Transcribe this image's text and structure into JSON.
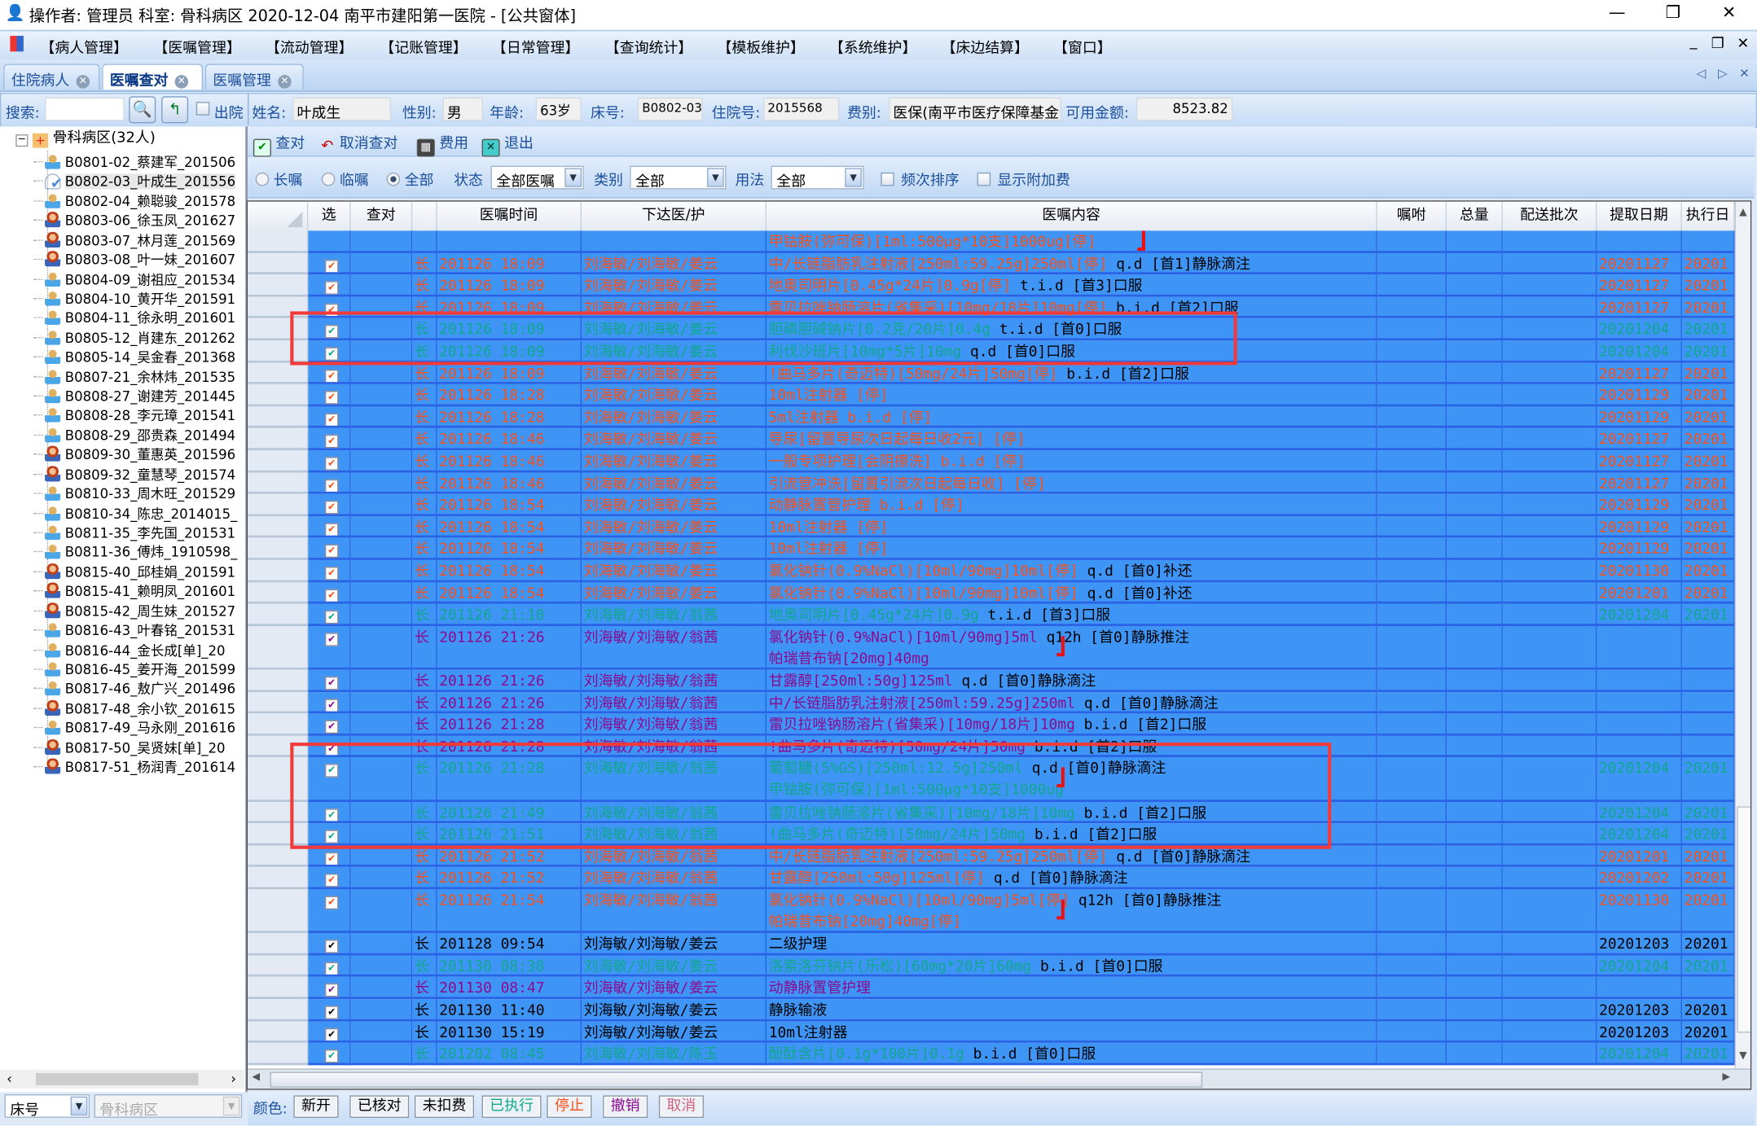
{
  "window": {
    "title": "操作者: 管理员  科室: 骨科病区  2020-12-04  南平市建阳第一医院 - [公共窗体]",
    "controls": [
      "—",
      "❐",
      "✕"
    ]
  },
  "menu": {
    "items": [
      "【病人管理】",
      "【医嘱管理】",
      "【流动管理】",
      "【记账管理】",
      "【日常管理】",
      "【查询统计】",
      "【模板维护】",
      "【系统维护】",
      "【床边结算】",
      "【窗口】"
    ],
    "mdi_controls": [
      "_",
      "❐",
      "✕"
    ]
  },
  "tabs": [
    {
      "label": "住院病人",
      "active": false
    },
    {
      "label": "医嘱查对",
      "active": true
    },
    {
      "label": "医嘱管理",
      "active": false
    }
  ],
  "tab_nav": [
    "◁",
    "▷",
    "✕"
  ],
  "search": {
    "label": "搜索:",
    "value": "",
    "discharged_label": "出院"
  },
  "patient": {
    "name_label": "姓名:",
    "name": "叶成生",
    "sex_label": "性别:",
    "sex": "男",
    "age_label": "年龄:",
    "age": "63岁",
    "bed_label": "床号:",
    "bed": "B0802-03",
    "admission_label": "住院号:",
    "admission": "2015568",
    "fee_type_label": "费别:",
    "fee_type": "医保(南平市医疗保障基金",
    "balance_label": "可用金额:",
    "balance": "8523.82"
  },
  "tree": {
    "root": "骨科病区(32人)",
    "items": [
      {
        "label": "B0801-02_蔡建军_201506",
        "icon": "male"
      },
      {
        "label": "B0802-03_叶成生_201556",
        "icon": "checked",
        "selected": true
      },
      {
        "label": "B0802-04_赖聪骏_201578",
        "icon": "male"
      },
      {
        "label": "B0803-06_徐玉凤_201627",
        "icon": "female"
      },
      {
        "label": "B0803-07_林月莲_201569",
        "icon": "female"
      },
      {
        "label": "B0803-08_叶一妹_201607",
        "icon": "female"
      },
      {
        "label": "B0804-09_谢祖应_201534",
        "icon": "male"
      },
      {
        "label": "B0804-10_黄开华_201591",
        "icon": "male"
      },
      {
        "label": "B0804-11_徐永明_201601",
        "icon": "male"
      },
      {
        "label": "B0805-12_肖建东_201262",
        "icon": "male"
      },
      {
        "label": "B0805-14_吴金春_201368",
        "icon": "male"
      },
      {
        "label": "B0807-21_余林炜_201535",
        "icon": "male"
      },
      {
        "label": "B0808-27_谢建芳_201445",
        "icon": "male"
      },
      {
        "label": "B0808-28_李元璋_201541",
        "icon": "male"
      },
      {
        "label": "B0808-29_邵贵森_201494",
        "icon": "male"
      },
      {
        "label": "B0809-30_董惠英_201596",
        "icon": "female"
      },
      {
        "label": "B0809-32_童慧琴_201574",
        "icon": "female"
      },
      {
        "label": "B0810-33_周木旺_201529",
        "icon": "male"
      },
      {
        "label": "B0810-34_陈忠_2014015_",
        "icon": "male"
      },
      {
        "label": "B0811-35_李先国_201531",
        "icon": "male"
      },
      {
        "label": "B0811-36_傅炜_1910598_",
        "icon": "male"
      },
      {
        "label": "B0815-40_邱桂娟_201591",
        "icon": "female"
      },
      {
        "label": "B0815-41_赖明凤_201601",
        "icon": "female"
      },
      {
        "label": "B0815-42_周生妹_201527",
        "icon": "female"
      },
      {
        "label": "B0816-43_叶春铭_201531",
        "icon": "male"
      },
      {
        "label": "B0816-44_金长成[单]_20",
        "icon": "male"
      },
      {
        "label": "B0816-45_姜开海_201599",
        "icon": "male"
      },
      {
        "label": "B0817-46_敖广兴_201496",
        "icon": "male"
      },
      {
        "label": "B0817-48_余小钦_201615",
        "icon": "female"
      },
      {
        "label": "B0817-49_马永刚_201616",
        "icon": "male"
      },
      {
        "label": "B0817-50_吴贤妹[单]_20",
        "icon": "female"
      },
      {
        "label": "B0817-51_杨润青_201614",
        "icon": "female"
      }
    ],
    "sort_select": "床号",
    "ward_select": "骨科病区"
  },
  "toolbar": {
    "check": "查对",
    "cancel_check": "取消查对",
    "fee": "费用",
    "exit": "退出"
  },
  "filter": {
    "radios": [
      {
        "label": "长嘱",
        "checked": false
      },
      {
        "label": "临嘱",
        "checked": false
      },
      {
        "label": "全部",
        "checked": true
      }
    ],
    "status_label": "状态",
    "status": "全部医嘱",
    "category_label": "类别",
    "category": "全部",
    "usage_label": "用法",
    "usage": "全部",
    "freq_sort": "频次排序",
    "show_extra_fee": "显示附加费"
  },
  "colors": {
    "orange": "#f5501a",
    "green": "#0fa88c",
    "purple": "#8a0a90",
    "black": "#000000",
    "row_bg": "#3f95f6",
    "annotation": "#f23a3a"
  },
  "table": {
    "columns": [
      "选",
      "查对",
      "",
      "医嘱时间",
      "下达医/护",
      "医嘱内容",
      "嘱咐",
      "总量",
      "配送批次",
      "提取日期",
      "执行日"
    ],
    "rows": [
      {
        "color": "orange",
        "checked": false,
        "type": "",
        "time": "",
        "doctor": "",
        "content": [
          "甲钴胺(弥可保)[1ml:500μg*10支]1000ug[停]"
        ],
        "freq": "",
        "fetch": "",
        "exec": "",
        "mark": true
      },
      {
        "color": "orange",
        "checked": true,
        "type": "长",
        "time": "201126 18:09",
        "doctor": "刘海敏/刘海敏/姜云",
        "content": [
          "中/长链脂肪乳注射液[250ml:59.25g]250ml[停]"
        ],
        "freq": "q.d [首1]静脉滴注",
        "fetch": "20201127",
        "exec": "20201"
      },
      {
        "color": "orange",
        "checked": true,
        "type": "长",
        "time": "201126 18:09",
        "doctor": "刘海敏/刘海敏/姜云",
        "content": [
          "地奥司明片[0.45g*24片]0.9g[停]"
        ],
        "freq": "t.i.d [首3]口服",
        "fetch": "20201127",
        "exec": "20201"
      },
      {
        "color": "orange",
        "checked": true,
        "type": "长",
        "time": "201126 18:09",
        "doctor": "刘海敏/刘海敏/姜云",
        "content": [
          "雷贝拉唑钠肠溶片(省集采)[10mg/18片]10mg[停]"
        ],
        "freq": "b.i.d [首2]口服",
        "fetch": "20201127",
        "exec": "20201"
      },
      {
        "color": "green",
        "checked": true,
        "type": "长",
        "time": "201126 18:09",
        "doctor": "刘海敏/刘海敏/姜云",
        "content": [
          "胆磷胆碱钠片[0.2克/20片]0.4g"
        ],
        "freq": "t.i.d [首0]口服",
        "fetch": "20201204",
        "exec": "20201"
      },
      {
        "color": "green",
        "checked": true,
        "type": "长",
        "time": "201126 18:09",
        "doctor": "刘海敏/刘海敏/姜云",
        "content": [
          "利伐沙班片[10mg*5片]10mg"
        ],
        "freq": "q.d [首0]口服",
        "fetch": "20201204",
        "exec": "20201"
      },
      {
        "color": "orange",
        "checked": true,
        "type": "长",
        "time": "201126 18:09",
        "doctor": "刘海敏/刘海敏/姜云",
        "content": [
          "!曲马多片(奇迈特)[50mg/24片]50mg[停]"
        ],
        "freq": "b.i.d [首2]口服",
        "fetch": "20201127",
        "exec": "20201"
      },
      {
        "color": "orange",
        "checked": true,
        "type": "长",
        "time": "201126 18:28",
        "doctor": "刘海敏/刘海敏/姜云",
        "content": [
          "10ml注射器   [停]"
        ],
        "freq": "",
        "fetch": "20201129",
        "exec": "20201"
      },
      {
        "color": "orange",
        "checked": true,
        "type": "长",
        "time": "201126 18:28",
        "doctor": "刘海敏/刘海敏/姜云",
        "content": [
          "5ml注射器 b.i.d  [停]"
        ],
        "freq": "",
        "fetch": "20201129",
        "exec": "20201"
      },
      {
        "color": "orange",
        "checked": true,
        "type": "长",
        "time": "201126 18:46",
        "doctor": "刘海敏/刘海敏/姜云",
        "content": [
          "导尿[留置导尿次日起每日收2元]   [停]"
        ],
        "freq": "",
        "fetch": "20201127",
        "exec": "20201"
      },
      {
        "color": "orange",
        "checked": true,
        "type": "长",
        "time": "201126 18:46",
        "doctor": "刘海敏/刘海敏/姜云",
        "content": [
          "一般专项护理[会阴擦洗] b.i.d  [停]"
        ],
        "freq": "",
        "fetch": "20201127",
        "exec": "20201"
      },
      {
        "color": "orange",
        "checked": true,
        "type": "长",
        "time": "201126 18:46",
        "doctor": "刘海敏/刘海敏/姜云",
        "content": [
          "引流管冲洗[留置引流次日起每日收]   [停]"
        ],
        "freq": "",
        "fetch": "20201127",
        "exec": "20201"
      },
      {
        "color": "orange",
        "checked": true,
        "type": "长",
        "time": "201126 18:54",
        "doctor": "刘海敏/刘海敏/姜云",
        "content": [
          "动静脉置管护理 b.i.d  [停]"
        ],
        "freq": "",
        "fetch": "20201129",
        "exec": "20201"
      },
      {
        "color": "orange",
        "checked": true,
        "type": "长",
        "time": "201126 18:54",
        "doctor": "刘海敏/刘海敏/姜云",
        "content": [
          "10ml注射器   [停]"
        ],
        "freq": "",
        "fetch": "20201129",
        "exec": "20201"
      },
      {
        "color": "orange",
        "checked": true,
        "type": "长",
        "time": "201126 18:54",
        "doctor": "刘海敏/刘海敏/姜云",
        "content": [
          "10ml注射器   [停]"
        ],
        "freq": "",
        "fetch": "20201129",
        "exec": "20201"
      },
      {
        "color": "orange",
        "checked": true,
        "type": "长",
        "time": "201126 18:54",
        "doctor": "刘海敏/刘海敏/姜云",
        "content": [
          "氯化钠针(0.9%NaCl)[10ml/90mg]10ml[停]"
        ],
        "freq": "q.d [首0]补还",
        "fetch": "20201130",
        "exec": "20201"
      },
      {
        "color": "orange",
        "checked": true,
        "type": "长",
        "time": "201126 18:54",
        "doctor": "刘海敏/刘海敏/姜云",
        "content": [
          "氯化钠针(0.9%NaCl)[10ml/90mg]10ml[停]"
        ],
        "freq": "q.d [首0]补还",
        "fetch": "20201201",
        "exec": "20201"
      },
      {
        "color": "green",
        "checked": true,
        "type": "长",
        "time": "201126 21:10",
        "doctor": "刘海敏/刘海敏/翁茜",
        "content": [
          "地奥司明片[0.45g*24片]0.9g"
        ],
        "freq": "t.i.d [首3]口服",
        "fetch": "20201204",
        "exec": "20201"
      },
      {
        "color": "purple",
        "checked": true,
        "type": "长",
        "time": "201126 21:26",
        "doctor": "刘海敏/刘海敏/翁茜",
        "content": [
          "氯化钠针(0.9%NaCl)[10ml/90mg]5ml",
          "帕瑞昔布钠[20mg]40mg"
        ],
        "freq": "q12h [首0]静脉推注",
        "fetch": "",
        "exec": "",
        "mark": true
      },
      {
        "color": "purple",
        "checked": true,
        "type": "长",
        "time": "201126 21:26",
        "doctor": "刘海敏/刘海敏/翁茜",
        "content": [
          "甘露醇[250ml:50g]125ml"
        ],
        "freq": "q.d [首0]静脉滴注",
        "fetch": "",
        "exec": ""
      },
      {
        "color": "purple",
        "checked": true,
        "type": "长",
        "time": "201126 21:26",
        "doctor": "刘海敏/刘海敏/翁茜",
        "content": [
          "中/长链脂肪乳注射液[250ml:59.25g]250ml"
        ],
        "freq": "q.d [首0]静脉滴注",
        "fetch": "",
        "exec": ""
      },
      {
        "color": "purple",
        "checked": true,
        "type": "长",
        "time": "201126 21:28",
        "doctor": "刘海敏/刘海敏/翁茜",
        "content": [
          "雷贝拉唑钠肠溶片(省集采)[10mg/18片]10mg"
        ],
        "freq": "b.i.d [首2]口服",
        "fetch": "",
        "exec": ""
      },
      {
        "color": "purple",
        "checked": true,
        "type": "长",
        "time": "201126 21:28",
        "doctor": "刘海敏/刘海敏/翁茜",
        "content": [
          "!曲马多片(奇迈特)[50mg/24片]50mg"
        ],
        "freq": "b.i.d [首2]口服",
        "fetch": "",
        "exec": ""
      },
      {
        "color": "green",
        "checked": true,
        "type": "长",
        "time": "201126 21:28",
        "doctor": "刘海敏/刘海敏/翁茜",
        "content": [
          "葡萄糖(5%GS)[250ml:12.5g]250ml",
          "甲钴胺(弥可保)[1ml:500μg*10支]1000ug"
        ],
        "freq": "q.d [首0]静脉滴注",
        "fetch": "20201204",
        "exec": "20201",
        "mark": true
      },
      {
        "color": "green",
        "checked": true,
        "type": "长",
        "time": "201126 21:49",
        "doctor": "刘海敏/刘海敏/翁茜",
        "content": [
          "雷贝拉唑钠肠溶片(省集采)[10mg/18片]10mg"
        ],
        "freq": "b.i.d [首2]口服",
        "fetch": "20201204",
        "exec": "20201"
      },
      {
        "color": "green",
        "checked": true,
        "type": "长",
        "time": "201126 21:51",
        "doctor": "刘海敏/刘海敏/翁茜",
        "content": [
          "!曲马多片(奇迈特)[50mg/24片]50mg"
        ],
        "freq": "b.i.d [首2]口服",
        "fetch": "20201204",
        "exec": "20201"
      },
      {
        "color": "orange",
        "checked": true,
        "type": "长",
        "time": "201126 21:52",
        "doctor": "刘海敏/刘海敏/翁茜",
        "content": [
          "中/长链脂肪乳注射液[250ml:59.25g]250ml[停]"
        ],
        "freq": "q.d [首0]静脉滴注",
        "fetch": "20201201",
        "exec": "20201"
      },
      {
        "color": "orange",
        "checked": true,
        "type": "长",
        "time": "201126 21:52",
        "doctor": "刘海敏/刘海敏/翁茜",
        "content": [
          "甘露醇[250ml:50g]125ml[停]"
        ],
        "freq": "q.d [首0]静脉滴注",
        "fetch": "20201202",
        "exec": "20201"
      },
      {
        "color": "orange",
        "checked": true,
        "type": "长",
        "time": "201126 21:54",
        "doctor": "刘海敏/刘海敏/翁茜",
        "content": [
          "氯化钠针(0.9%NaCl)[10ml/90mg]5ml[停]",
          "帕瑞昔布钠[20mg]40mg[停]"
        ],
        "freq": "q12h [首0]静脉推注",
        "fetch": "20201130",
        "exec": "20201",
        "mark": true
      },
      {
        "color": "black",
        "checked": true,
        "type": "长",
        "time": "201128 09:54",
        "doctor": "刘海敏/刘海敏/姜云",
        "content": [
          "二级护理"
        ],
        "freq": "",
        "fetch": "20201203",
        "exec": "20201"
      },
      {
        "color": "green",
        "checked": true,
        "type": "长",
        "time": "201130 08:38",
        "doctor": "刘海敏/刘海敏/姜云",
        "content": [
          "洛索洛芬钠片(乐松)[60mg*20片]60mg"
        ],
        "freq": "b.i.d [首0]口服",
        "fetch": "20201204",
        "exec": "20201"
      },
      {
        "color": "purple",
        "checked": true,
        "type": "长",
        "time": "201130 08:47",
        "doctor": "刘海敏/刘海敏/姜云",
        "content": [
          "动静脉置管护理"
        ],
        "freq": "",
        "fetch": "",
        "exec": ""
      },
      {
        "color": "black",
        "checked": true,
        "type": "长",
        "time": "201130 11:40",
        "doctor": "刘海敏/刘海敏/姜云",
        "content": [
          "静脉输液"
        ],
        "freq": "",
        "fetch": "20201203",
        "exec": "20201"
      },
      {
        "color": "black",
        "checked": true,
        "type": "长",
        "time": "201130 15:19",
        "doctor": "刘海敏/刘海敏/姜云",
        "content": [
          "10ml注射器"
        ],
        "freq": "",
        "fetch": "20201203",
        "exec": "20201"
      },
      {
        "color": "green",
        "checked": true,
        "type": "长",
        "time": "201202 08:45",
        "doctor": "刘海敏/刘海敏/陈玉",
        "content": [
          "酚酞含片[0.1g*100片]0.1g"
        ],
        "freq": "b.i.d [首0]口服",
        "fetch": "20201204",
        "exec": "20201"
      }
    ]
  },
  "legend": {
    "label": "颜色:",
    "buttons": [
      {
        "label": "新开",
        "color": "#000000"
      },
      {
        "label": "已核对",
        "color": "#000000"
      },
      {
        "label": "未扣费",
        "color": "#000000"
      },
      {
        "label": "已执行",
        "color": "#0fa88c"
      },
      {
        "label": "停止",
        "color": "#f5501a"
      },
      {
        "label": "撤销",
        "color": "#8a0a90"
      },
      {
        "label": "取消",
        "color": "#d0607a"
      }
    ]
  }
}
